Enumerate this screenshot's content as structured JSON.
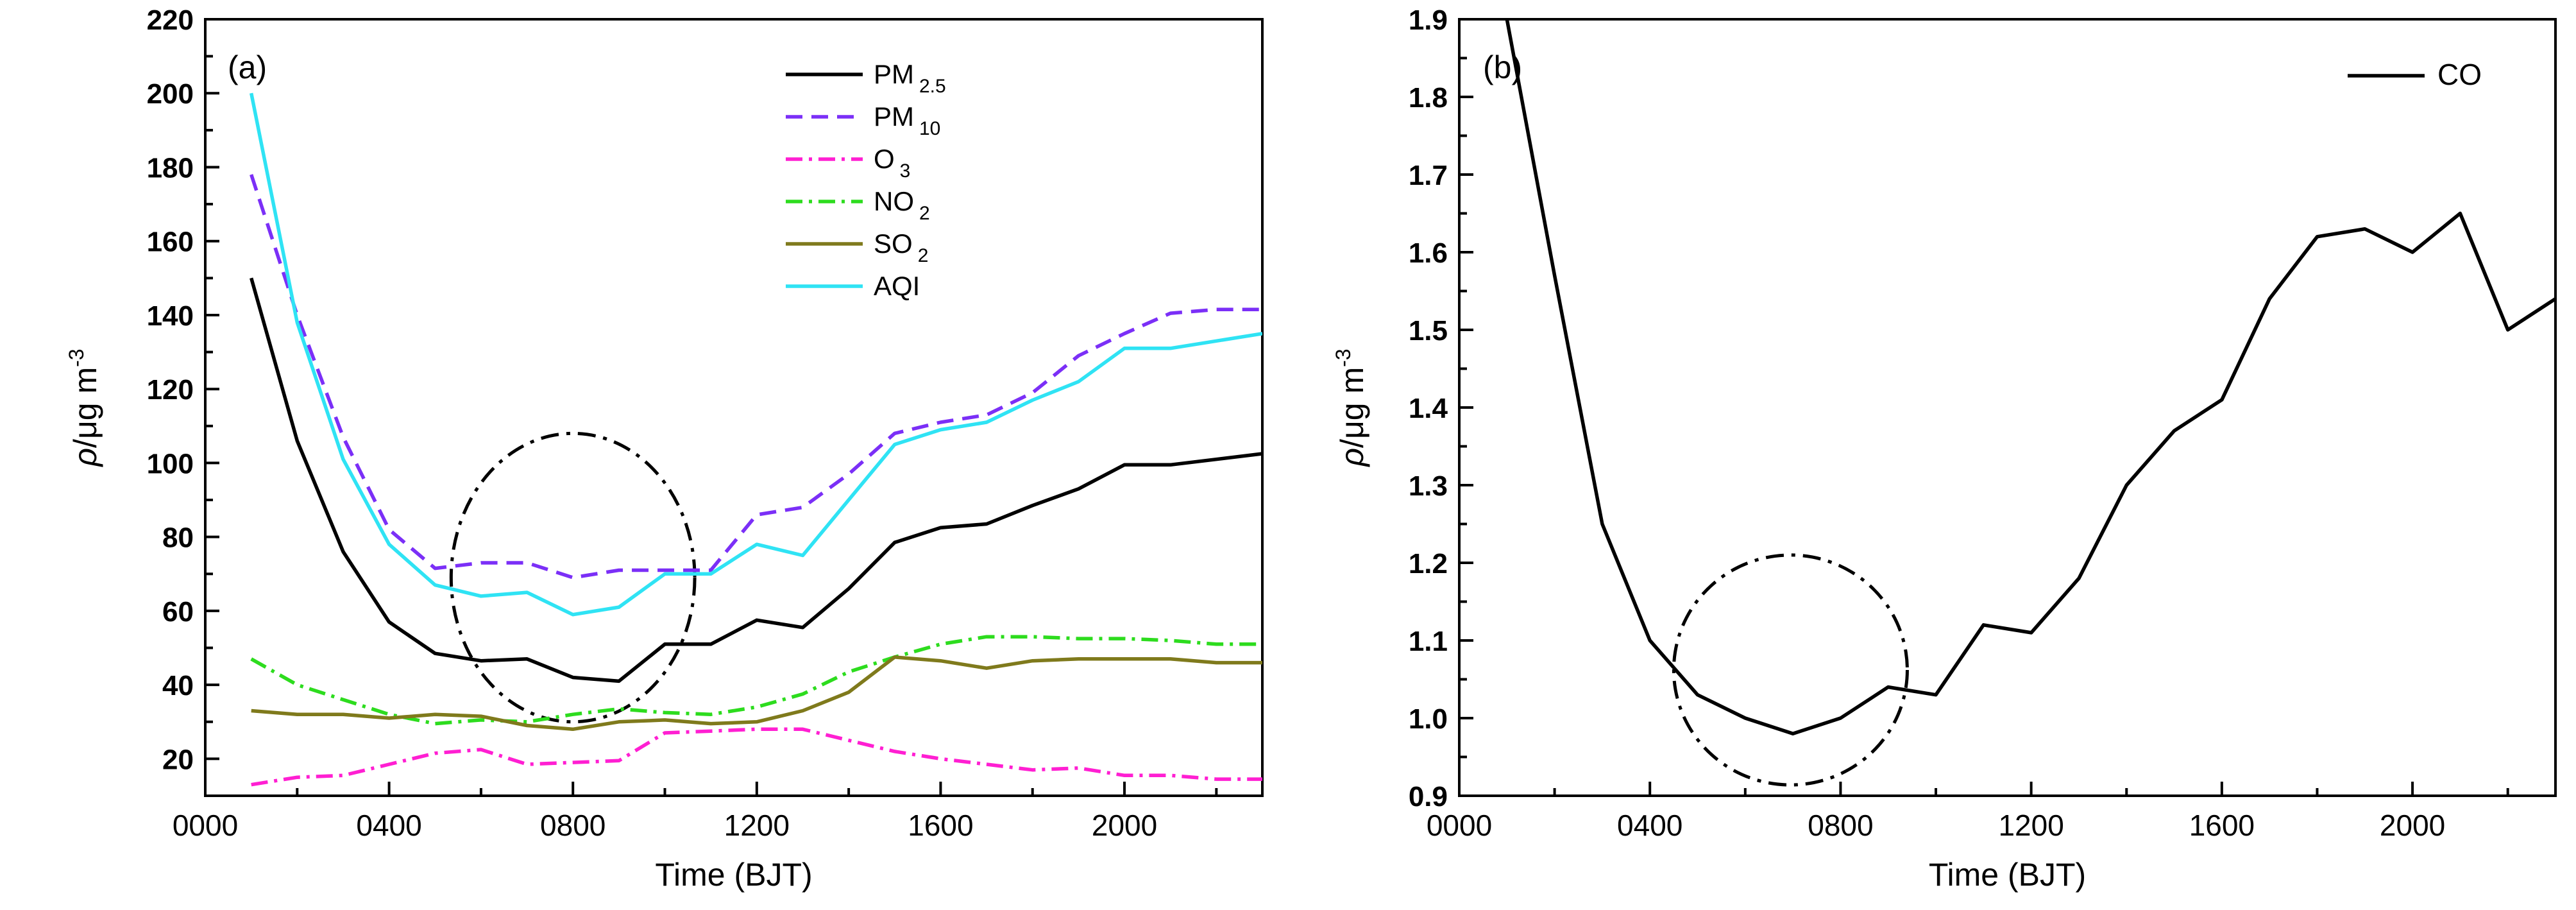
{
  "chart_data": [
    {
      "type": "line",
      "panel_label": "(a)",
      "xlabel": "Time (BJT)",
      "ylabel": {
        "base": "ρ/μg m",
        "sup": "-3"
      },
      "xlim": [
        0,
        23
      ],
      "ylim": [
        10,
        220
      ],
      "x_ticks": [
        0,
        4,
        8,
        12,
        16,
        20
      ],
      "x_tick_labels": [
        "0000",
        "0400",
        "0800",
        "1200",
        "1600",
        "2000"
      ],
      "y_ticks": [
        20,
        40,
        60,
        80,
        100,
        120,
        140,
        160,
        180,
        200,
        220
      ],
      "y_tick_labels": [
        "20",
        "40",
        "60",
        "80",
        "100",
        "120",
        "140",
        "160",
        "180",
        "200",
        "220"
      ],
      "legend_position": "top-right",
      "series": [
        {
          "name": "PM",
          "sub": "2.5",
          "sub_style": "subscript",
          "color": "#000000",
          "dash": "solid",
          "x": [
            1,
            2,
            3,
            4,
            5,
            6,
            7,
            8,
            9,
            10,
            11,
            12,
            13,
            14,
            15,
            16,
            17,
            18,
            19,
            20,
            21,
            22,
            23
          ],
          "values": [
            150,
            106,
            76,
            57,
            48.5,
            46.5,
            47,
            42,
            41,
            51,
            51,
            57.5,
            55.5,
            66,
            78.5,
            82.5,
            83.5,
            88.5,
            93,
            99.5,
            99.5,
            101,
            102.5
          ]
        },
        {
          "name": "PM",
          "sub": "10",
          "sub_style": "subscript",
          "color": "#7b2ff7",
          "dash": "dashed",
          "x": [
            1,
            2,
            3,
            4,
            5,
            6,
            7,
            8,
            9,
            10,
            11,
            12,
            13,
            14,
            15,
            16,
            17,
            18,
            19,
            20,
            21,
            22,
            23
          ],
          "values": [
            178,
            140,
            107,
            82,
            71.5,
            73,
            73,
            69,
            71,
            71,
            71,
            86,
            88,
            97,
            108,
            111,
            113,
            119,
            129,
            135,
            140.5,
            141.5,
            141.5
          ]
        },
        {
          "name": "O",
          "sub": "3",
          "sub_style": "subscript",
          "color": "#ff1fd2",
          "dash": "dashdot",
          "x": [
            1,
            2,
            3,
            4,
            5,
            6,
            7,
            8,
            9,
            10,
            11,
            12,
            13,
            14,
            15,
            16,
            17,
            18,
            19,
            20,
            21,
            22,
            23
          ],
          "values": [
            13,
            15,
            15.5,
            18.5,
            21.5,
            22.5,
            18.5,
            19,
            19.5,
            27,
            27.5,
            28,
            28,
            25,
            22,
            20,
            18.5,
            17,
            17.5,
            15.5,
            15.5,
            14.5,
            14.5
          ]
        },
        {
          "name": "NO",
          "sub": "2",
          "sub_style": "subscript",
          "color": "#2ddc1e",
          "dash": "dashdot",
          "x": [
            1,
            2,
            3,
            4,
            5,
            6,
            7,
            8,
            9,
            10,
            11,
            12,
            13,
            14,
            15,
            16,
            17,
            18,
            19,
            20,
            21,
            22,
            23
          ],
          "values": [
            47,
            40,
            36,
            32,
            29.5,
            30.5,
            30,
            32,
            33.5,
            32.5,
            32,
            34,
            37.5,
            43.5,
            47.5,
            51,
            53,
            53,
            52.5,
            52.5,
            52,
            51,
            51
          ]
        },
        {
          "name": "SO",
          "sub": "2",
          "sub_style": "subscript",
          "color": "#7f7a1c",
          "dash": "solid",
          "x": [
            1,
            2,
            3,
            4,
            5,
            6,
            7,
            8,
            9,
            10,
            11,
            12,
            13,
            14,
            15,
            16,
            17,
            18,
            19,
            20,
            21,
            22,
            23
          ],
          "values": [
            33,
            32,
            32,
            31,
            32,
            31.5,
            29,
            28,
            30,
            30.5,
            29.5,
            30,
            33,
            38,
            47.5,
            46.5,
            44.5,
            46.5,
            47,
            47,
            47,
            46,
            46
          ]
        },
        {
          "name": "AQI",
          "sub": "",
          "sub_style": "none",
          "color": "#2fe3f4",
          "dash": "solid",
          "x": [
            1,
            2,
            3,
            4,
            5,
            6,
            7,
            8,
            9,
            10,
            11,
            12,
            13,
            14,
            15,
            16,
            17,
            18,
            19,
            20,
            21,
            22,
            23
          ],
          "values": [
            200,
            138,
            101,
            78,
            67,
            64,
            65,
            59,
            61,
            70,
            70,
            78,
            75,
            90,
            105,
            109,
            111,
            117,
            122,
            131,
            131,
            133,
            135
          ]
        }
      ],
      "annotations": [
        {
          "type": "dashdot-ellipse",
          "cx": 8,
          "cy": 69,
          "rx": 2.65,
          "ry": 39,
          "color": "#000000"
        }
      ]
    },
    {
      "type": "line",
      "panel_label": "(b)",
      "xlabel": "Time (BJT)",
      "ylabel": {
        "base": "ρ/μg m",
        "sup": "-3"
      },
      "xlim": [
        0,
        23
      ],
      "ylim": [
        0.9,
        1.9
      ],
      "x_ticks": [
        0,
        4,
        8,
        12,
        16,
        20
      ],
      "x_tick_labels": [
        "0000",
        "0400",
        "0800",
        "1200",
        "1600",
        "2000"
      ],
      "y_ticks": [
        0.9,
        1.0,
        1.1,
        1.2,
        1.3,
        1.4,
        1.5,
        1.6,
        1.7,
        1.8,
        1.9
      ],
      "y_tick_labels": [
        "0.9",
        "1.0",
        "1.1",
        "1.2",
        "1.3",
        "1.4",
        "1.5",
        "1.6",
        "1.7",
        "1.8",
        "1.9"
      ],
      "legend_position": "top-right",
      "series": [
        {
          "name": "CO",
          "sub": "",
          "sub_style": "none",
          "color": "#000000",
          "dash": "solid",
          "x": [
            1,
            2,
            3,
            4,
            5,
            6,
            7,
            8,
            9,
            10,
            11,
            12,
            13,
            14,
            15,
            16,
            17,
            18,
            19,
            20,
            21,
            22,
            23
          ],
          "values": [
            1.9,
            1.57,
            1.25,
            1.1,
            1.03,
            1.0,
            0.98,
            1.0,
            1.04,
            1.03,
            1.12,
            1.11,
            1.18,
            1.3,
            1.37,
            1.41,
            1.54,
            1.62,
            1.63,
            1.6,
            1.65,
            1.5,
            1.54
          ]
        }
      ],
      "annotations": [
        {
          "type": "dashdot-ellipse",
          "cx": 6.95,
          "cy": 1.062,
          "rx": 2.45,
          "ry": 0.148,
          "color": "#000000"
        }
      ]
    }
  ]
}
